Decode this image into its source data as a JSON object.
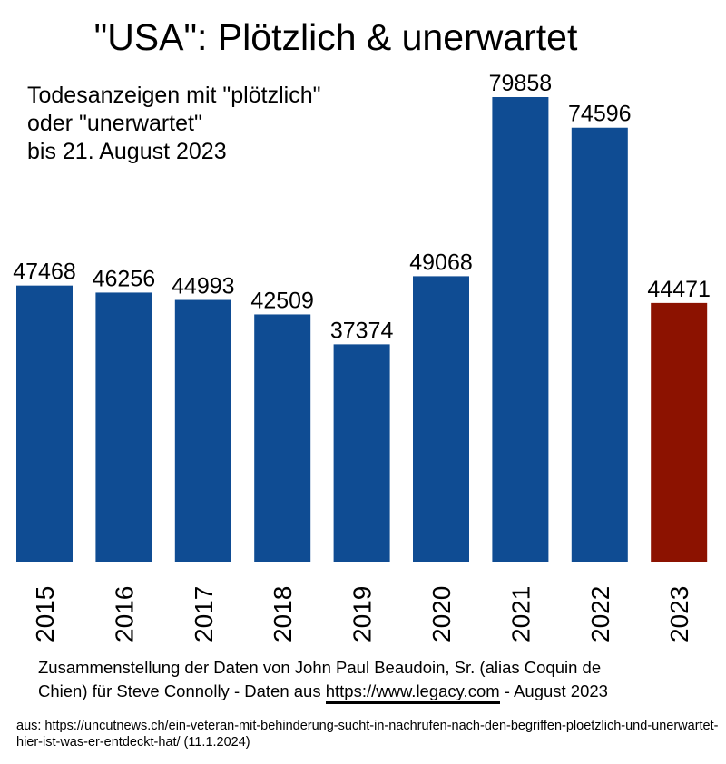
{
  "chart_data": {
    "type": "bar",
    "title": "\"USA\": Plötzlich & unerwartet",
    "subtitle": [
      "Todesanzeigen mit \"plötzlich\"",
      "oder \"unerwartet\"",
      "bis 21. August 2023"
    ],
    "categories": [
      "2015",
      "2016",
      "2017",
      "2018",
      "2019",
      "2020",
      "2021",
      "2022",
      "2023"
    ],
    "values": [
      47468,
      46256,
      44993,
      42509,
      37374,
      49068,
      79858,
      74596,
      44471
    ],
    "data_labels": [
      "47468",
      "46256",
      "44993",
      "42509",
      "37374",
      "49068",
      "79858",
      "74596",
      "44471"
    ],
    "colors": [
      "#0f4c93",
      "#0f4c93",
      "#0f4c93",
      "#0f4c93",
      "#0f4c93",
      "#0f4c93",
      "#0f4c93",
      "#0f4c93",
      "#8c1200"
    ],
    "ylim": [
      0,
      80000
    ],
    "xlabel": "",
    "ylabel": "",
    "grid": false,
    "legend": "none"
  },
  "credit": {
    "line1": "Zusammenstellung der Daten von John Paul Beaudoin, Sr. (alias Coquin de",
    "line2_pre": "Chien) für Steve Connolly - Daten aus ",
    "link": "https://www.legacy.com",
    "line2_post": " - August 2023"
  },
  "source": "aus: https://uncutnews.ch/ein-veteran-mit-behinderung-sucht-in-nachrufen-nach-den-begriffen-ploetzlich-und-unerwartet-hier-ist-was-er-entdeckt-hat/ (11.1.2024)"
}
